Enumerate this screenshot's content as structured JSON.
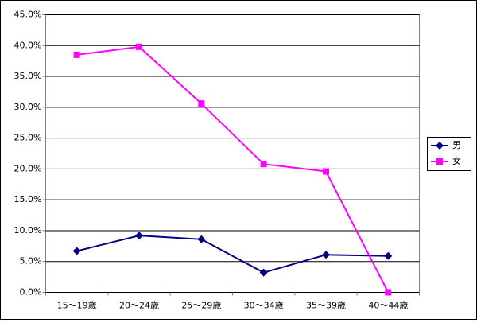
{
  "chart_data": {
    "type": "line",
    "categories": [
      "15～19歳",
      "20～24歳",
      "25～29歳",
      "30～34歳",
      "35～39歳",
      "40～44歳"
    ],
    "series": [
      {
        "name": "男",
        "color": "#000080",
        "marker": "diamond",
        "values": [
          6.7,
          9.2,
          8.6,
          3.2,
          6.1,
          5.9
        ]
      },
      {
        "name": "女",
        "color": "#ff00ff",
        "marker": "square",
        "values": [
          38.5,
          39.8,
          30.6,
          20.8,
          19.6,
          0.0
        ]
      }
    ],
    "ylim": [
      0,
      45
    ],
    "yticks": [
      {
        "value": 0,
        "label": "0.0%"
      },
      {
        "value": 5,
        "label": "5.0%"
      },
      {
        "value": 10,
        "label": "10.0%"
      },
      {
        "value": 15,
        "label": "15.0%"
      },
      {
        "value": 20,
        "label": "20.0%"
      },
      {
        "value": 25,
        "label": "25.0%"
      },
      {
        "value": 30,
        "label": "30.0%"
      },
      {
        "value": 35,
        "label": "35.0%"
      },
      {
        "value": 40,
        "label": "40.0%"
      },
      {
        "value": 45,
        "label": "45.0%"
      }
    ],
    "grid": true,
    "legend": "right"
  }
}
